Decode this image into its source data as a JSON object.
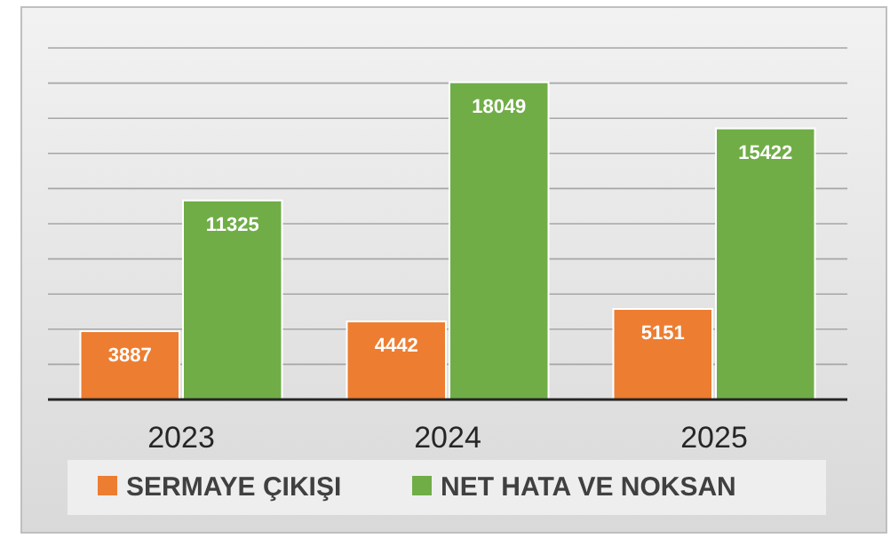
{
  "chart_data": {
    "type": "bar",
    "categories": [
      "2023",
      "2024",
      "2025"
    ],
    "series": [
      {
        "name": "SERMAYE ÇIKIŞI",
        "color": "#ed7d31",
        "values": [
          3887,
          4442,
          5151
        ]
      },
      {
        "name": "NET HATA VE NOKSAN",
        "color": "#70ad47",
        "values": [
          11325,
          18049,
          15422
        ]
      }
    ],
    "ylim": [
      0,
      20000
    ],
    "yticks": [
      {
        "value": 0,
        "label": null
      },
      {
        "value": 2000,
        "label": null
      },
      {
        "value": 4000,
        "label": null
      },
      {
        "value": 6000,
        "label": null
      },
      {
        "value": 8000,
        "label": null
      },
      {
        "value": 10000,
        "label": null
      },
      {
        "value": 12000,
        "label": null
      },
      {
        "value": 14000,
        "label": null
      },
      {
        "value": 16000,
        "label": null
      },
      {
        "value": 18000,
        "label": null
      },
      {
        "value": 20000,
        "label": null
      }
    ],
    "tick_labels": "x",
    "grid": "y",
    "data_labels": true,
    "legend": "bottom"
  }
}
